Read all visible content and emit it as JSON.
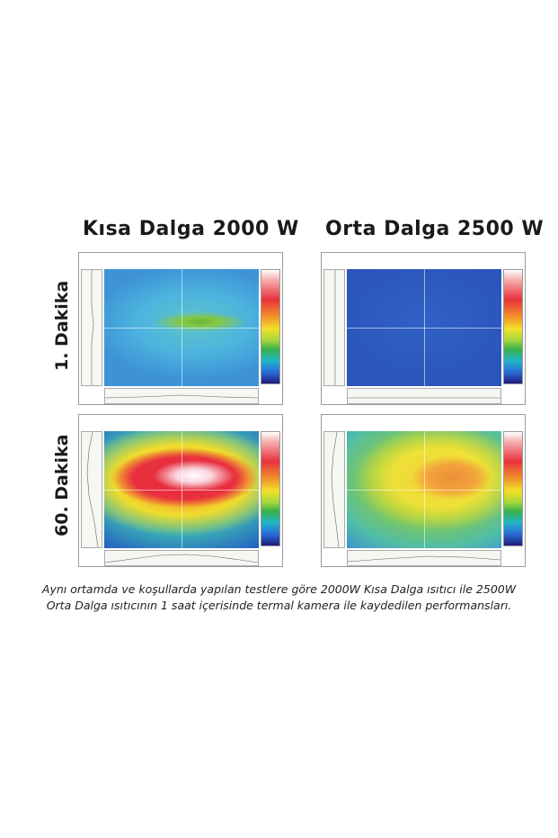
{
  "columns": {
    "left_title": "Kısa Dalga 2000 W",
    "right_title": "Orta Dalga 2500 W"
  },
  "rows": {
    "top_label": "1. Dakika",
    "bottom_label": "60. Dakika"
  },
  "panels": [
    {
      "id": "sw-1",
      "heater": "Kısa Dalga 2000 W",
      "time": "1. Dakika",
      "heat_level": "low-medium"
    },
    {
      "id": "mw-1",
      "heater": "Orta Dalga 2500 W",
      "time": "1. Dakika",
      "heat_level": "low"
    },
    {
      "id": "sw-60",
      "heater": "Kısa Dalga 2000 W",
      "time": "60. Dakika",
      "heat_level": "very-high"
    },
    {
      "id": "mw-60",
      "heater": "Orta Dalga 2500 W",
      "time": "60. Dakika",
      "heat_level": "medium-high"
    }
  ],
  "colors": {
    "hot": "#e52a3c",
    "warm": "#f2a22a",
    "mild": "#f0dd2c",
    "cool": "#3d93d6",
    "cold": "#2b56bb"
  },
  "caption": {
    "line1": "Aynı ortamda ve koşullarda yapılan testlere göre 2000W Kısa Dalga ısıtıcı ile 2500W",
    "line2": "Orta Dalga ısıtıcının 1 saat içerisinde termal kamera ile kaydedilen performansları."
  }
}
